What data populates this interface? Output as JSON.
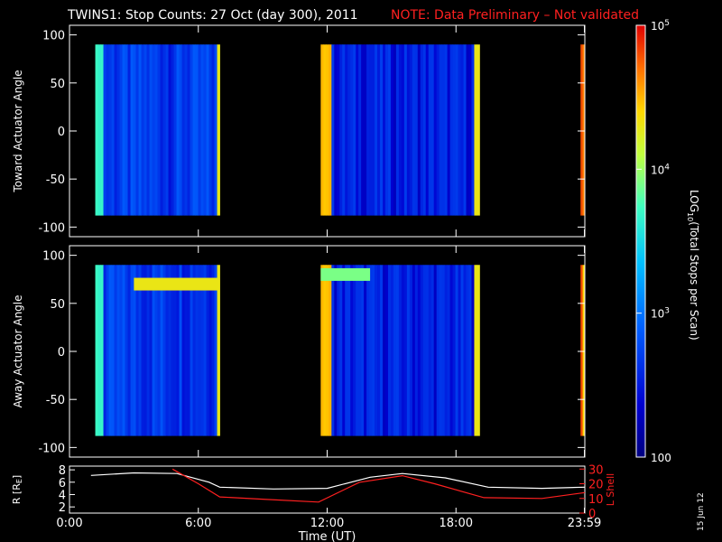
{
  "title": "TWINS1: Stop Counts: 27 Oct (day 300), 2011",
  "note": "NOTE: Data Preliminary – Not validated",
  "stamp": "15 Jun 12",
  "colors": {
    "background": "#000000",
    "axis": "#ffffff",
    "note": "#ff0000",
    "r_line": "#ffffff",
    "lshell_line": "#ff2020"
  },
  "chart_data": [
    {
      "type": "heatmap",
      "name": "Toward Actuator Angle panel",
      "ylabel": "Toward Actuator Angle",
      "ylim": [
        -110,
        110
      ],
      "yticks": [
        -100,
        -50,
        0,
        50,
        100
      ],
      "xlim": [
        0,
        24
      ],
      "data_ylim": [
        -88,
        90
      ],
      "blocks": [
        {
          "x": [
            1.2,
            7.0
          ],
          "bg": 500,
          "edge_start": 5000,
          "edge_end": 20000
        },
        {
          "x": [
            11.7,
            19.1
          ],
          "bg": 350,
          "edge_start": 30000,
          "edge_end": 20000
        },
        {
          "x": [
            23.8,
            24.0
          ],
          "bg": 40000,
          "edge_start": 60000,
          "edge_end": 60000
        }
      ]
    },
    {
      "type": "heatmap",
      "name": "Away Actuator Angle panel",
      "ylabel": "Away Actuator Angle",
      "ylim": [
        -110,
        110
      ],
      "yticks": [
        -100,
        -50,
        0,
        50,
        100
      ],
      "xlim": [
        0,
        24
      ],
      "data_ylim": [
        -88,
        90
      ],
      "blocks": [
        {
          "x": [
            1.2,
            7.0
          ],
          "bg": 500,
          "edge_start": 5000,
          "edge_end": 20000,
          "band": [
            3.0,
            7.0,
            70,
            20000
          ]
        },
        {
          "x": [
            11.7,
            19.1
          ],
          "bg": 350,
          "edge_start": 30000,
          "edge_end": 20000,
          "band": [
            11.7,
            14.0,
            80,
            8000
          ]
        },
        {
          "x": [
            23.8,
            24.0
          ],
          "bg": 40000,
          "edge_start": 60000,
          "edge_end": 60000
        }
      ]
    },
    {
      "type": "line",
      "name": "orbit panel",
      "xlabel": "Time (UT)",
      "xticks": [
        "0:00",
        "6:00",
        "12:00",
        "18:00",
        "23:59"
      ],
      "xtick_values": [
        0,
        6,
        12,
        18,
        23.98
      ],
      "ylabel_left": "R [R",
      "ylabel_left_sub": "E",
      "ylabel_right": "L Shell",
      "left_yticks": [
        2,
        4,
        6,
        8
      ],
      "left_ylim": [
        1,
        8.6
      ],
      "right_yticks": [
        0,
        10,
        20,
        30
      ],
      "right_ylim": [
        0,
        32
      ],
      "series": [
        {
          "axis": "left",
          "x": [
            1.0,
            3.0,
            5.0,
            6.5,
            7.0,
            9.5,
            12.0,
            14.0,
            15.5,
            17.5,
            19.5,
            22.0,
            24.0
          ],
          "y": [
            7.1,
            7.5,
            7.4,
            6.0,
            5.2,
            4.9,
            5.0,
            6.8,
            7.4,
            6.7,
            5.2,
            5.0,
            5.2
          ]
        },
        {
          "axis": "right",
          "x": [
            4.8,
            6.0,
            7.0,
            9.0,
            11.6,
            13.5,
            15.5,
            17.0,
            19.3,
            22.0,
            24.0
          ],
          "y": [
            30,
            20,
            11,
            9.5,
            7.5,
            21,
            25.5,
            20,
            10.5,
            10,
            14
          ]
        }
      ]
    }
  ],
  "colorbar": {
    "label_pre": "LOG",
    "label_sub": "10",
    "label_post": "(Total Stops per Scan)",
    "ticks": [
      {
        "base": "10",
        "exp": "5",
        "value": 100000
      },
      {
        "base": "10",
        "exp": "4",
        "value": 10000
      },
      {
        "base": "10",
        "exp": "3",
        "value": 1000
      },
      {
        "base": "",
        "exp": "",
        "text": "100",
        "value": 100
      }
    ],
    "range": [
      100,
      100000
    ]
  }
}
